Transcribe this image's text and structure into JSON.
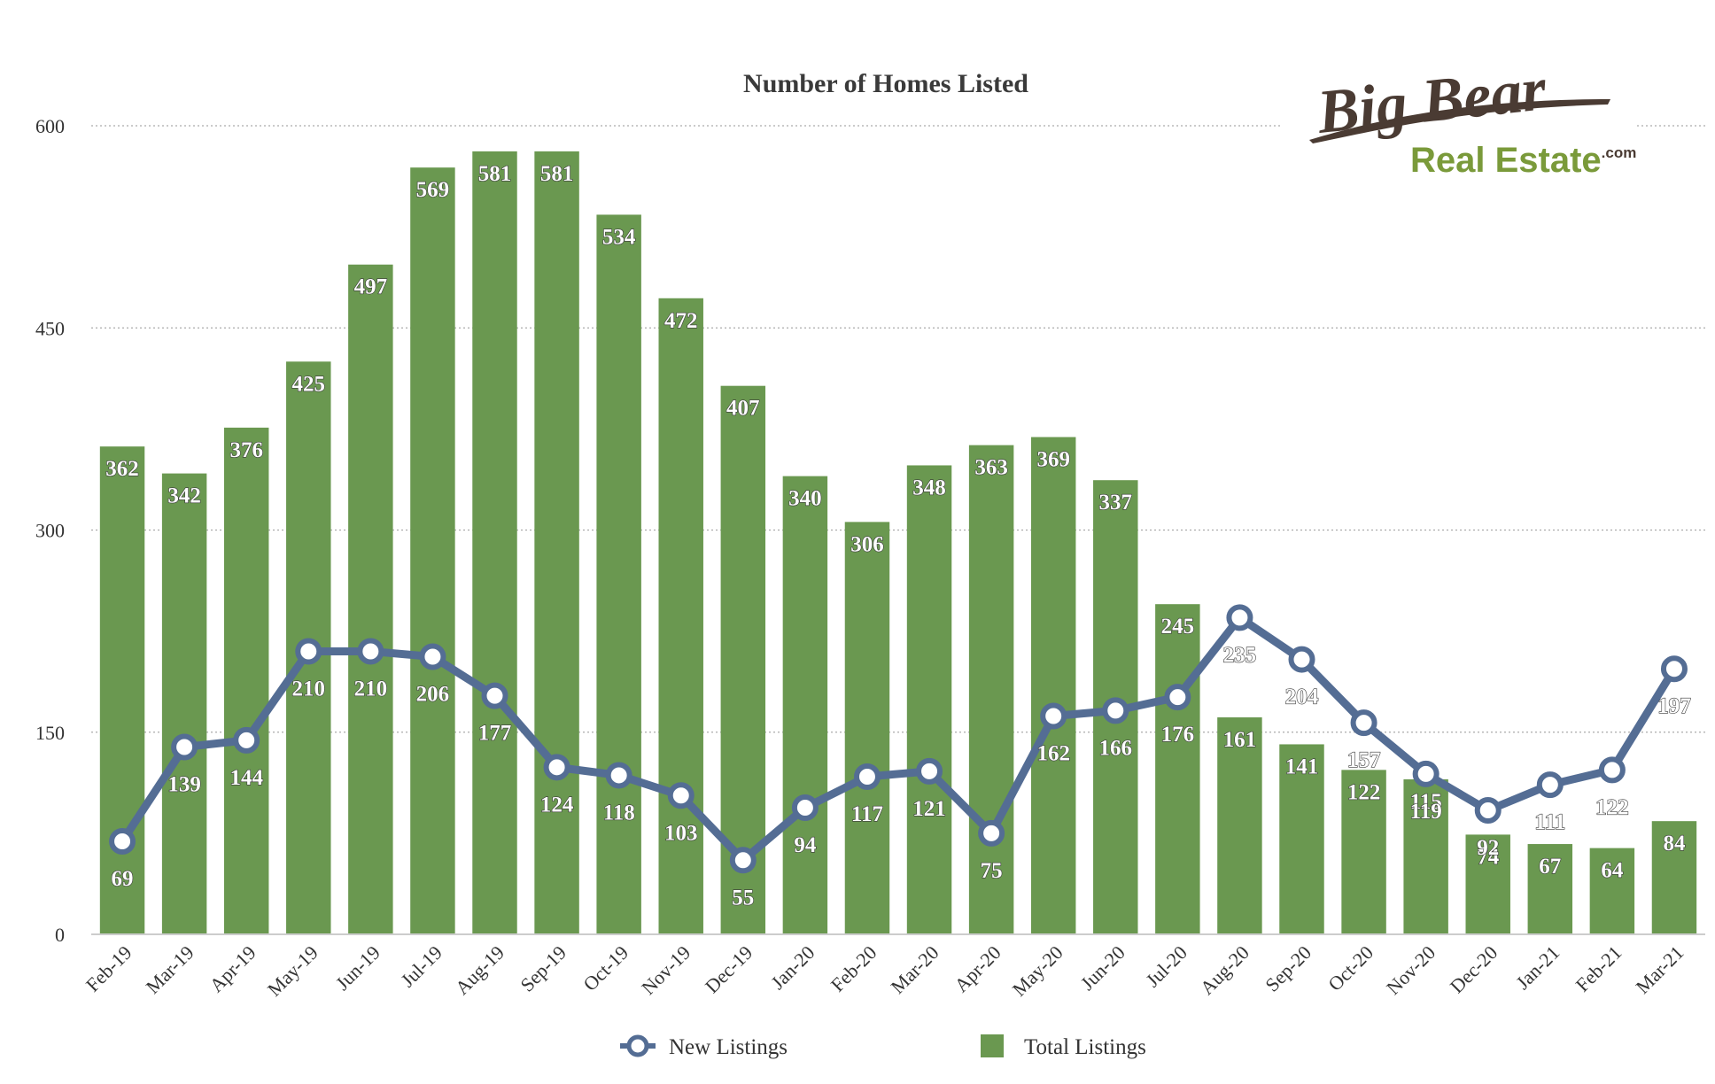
{
  "logo": {
    "line1": "Big Bear",
    "line2": "Real Estate",
    "suffix": ".com"
  },
  "colors": {
    "bar": "#6a9850",
    "line": "#546d94",
    "grid": "#aaaaaa",
    "axis": "#cccccc"
  },
  "chart_data": {
    "type": "bar",
    "title": "Number of Homes Listed",
    "xlabel": "",
    "ylabel": "",
    "ylim": [
      0,
      600
    ],
    "yticks": [
      0,
      150,
      300,
      450,
      600
    ],
    "grid": true,
    "legend_position": "bottom",
    "categories": [
      "Feb-19",
      "Mar-19",
      "Apr-19",
      "May-19",
      "Jun-19",
      "Jul-19",
      "Aug-19",
      "Sep-19",
      "Oct-19",
      "Nov-19",
      "Dec-19",
      "Jan-20",
      "Feb-20",
      "Mar-20",
      "Apr-20",
      "May-20",
      "Jun-20",
      "Jul-20",
      "Aug-20",
      "Sep-20",
      "Oct-20",
      "Nov-20",
      "Dec-20",
      "Jan-21",
      "Feb-21",
      "Mar-21"
    ],
    "series": [
      {
        "name": "New Listings",
        "type": "line",
        "values": [
          69,
          139,
          144,
          210,
          210,
          206,
          177,
          124,
          118,
          103,
          55,
          94,
          117,
          121,
          75,
          162,
          166,
          176,
          235,
          204,
          157,
          119,
          92,
          111,
          122,
          197
        ]
      },
      {
        "name": "Total Listings",
        "type": "bar",
        "values": [
          362,
          342,
          376,
          425,
          497,
          569,
          581,
          581,
          534,
          472,
          407,
          340,
          306,
          348,
          363,
          369,
          337,
          245,
          161,
          141,
          122,
          115,
          74,
          67,
          64,
          84
        ]
      }
    ]
  }
}
